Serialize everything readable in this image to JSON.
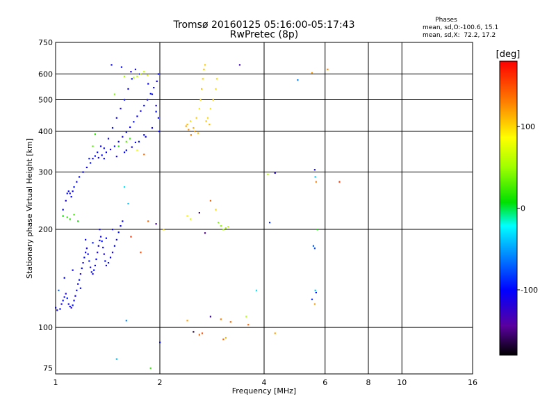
{
  "chart_data": {
    "type": "scatter",
    "title": "Tromsø 20160125 05:16:00-05:17:43",
    "subtitle": "RwPretec (8p)",
    "xlabel": "Frequency [MHz]",
    "ylabel": "Stationary phase Virtual Height [km]",
    "x_scale": "log",
    "y_scale": "log",
    "xlim": [
      1,
      16
    ],
    "ylim": [
      72,
      750
    ],
    "grid": true,
    "x_ticks": [
      1,
      2,
      4,
      6,
      8,
      10,
      16
    ],
    "x_tick_labels": [
      "1",
      "2",
      "4",
      "6",
      "8",
      "10",
      "16"
    ],
    "y_ticks": [
      75,
      100,
      200,
      300,
      400,
      500,
      600,
      750
    ],
    "y_tick_labels": [
      "75",
      "100",
      "200",
      "300",
      "400",
      "500",
      "600",
      "750"
    ],
    "stats": {
      "header": "Phases",
      "line_o": "mean, sd,O:-100.6, 15.1",
      "line_x": "mean, sd,X:  72.2, 17.2"
    },
    "colorbar": {
      "label": "[deg]",
      "range": [
        -180,
        180
      ],
      "ticks": [
        100,
        0,
        -100
      ],
      "tick_labels": [
        "100",
        "0",
        "-100"
      ]
    },
    "series": [
      {
        "points": [
          [
            1.0,
            115,
            -105
          ],
          [
            1.01,
            113,
            -110
          ],
          [
            1.03,
            114,
            -100
          ],
          [
            1.04,
            118,
            -112
          ],
          [
            1.05,
            121,
            -98
          ],
          [
            1.06,
            124,
            -105
          ],
          [
            1.07,
            127,
            -115
          ],
          [
            1.08,
            123,
            -90
          ],
          [
            1.09,
            118,
            -108
          ],
          [
            1.1,
            116,
            -102
          ],
          [
            1.11,
            115,
            -118
          ],
          [
            1.12,
            117,
            -95
          ],
          [
            1.13,
            121,
            -104
          ],
          [
            1.14,
            125,
            -110
          ],
          [
            1.15,
            130,
            -100
          ],
          [
            1.16,
            136,
            -106
          ],
          [
            1.17,
            140,
            -95
          ],
          [
            1.18,
            146,
            -112
          ],
          [
            1.19,
            152,
            -100
          ],
          [
            1.2,
            158,
            -108
          ],
          [
            1.21,
            164,
            -98
          ],
          [
            1.22,
            170,
            -104
          ],
          [
            1.23,
            175,
            -110
          ],
          [
            1.24,
            168,
            -100
          ],
          [
            1.25,
            160,
            -95
          ],
          [
            1.26,
            153,
            -108
          ],
          [
            1.27,
            148,
            -102
          ],
          [
            1.28,
            146,
            -110
          ],
          [
            1.29,
            150,
            -98
          ],
          [
            1.3,
            155,
            -104
          ],
          [
            1.31,
            162,
            -100
          ],
          [
            1.32,
            170,
            -112
          ],
          [
            1.33,
            178,
            -106
          ],
          [
            1.34,
            185,
            -100
          ],
          [
            1.35,
            190,
            -108
          ],
          [
            1.36,
            184,
            -96
          ],
          [
            1.37,
            176,
            -104
          ],
          [
            1.38,
            168,
            -110
          ],
          [
            1.39,
            160,
            -100
          ],
          [
            1.4,
            155,
            -106
          ],
          [
            1.42,
            158,
            -98
          ],
          [
            1.44,
            164,
            -104
          ],
          [
            1.46,
            170,
            -110
          ],
          [
            1.48,
            178,
            -100
          ],
          [
            1.5,
            186,
            -106
          ],
          [
            1.52,
            196,
            -98
          ],
          [
            1.54,
            205,
            -104
          ],
          [
            1.56,
            212,
            -102
          ],
          [
            1.02,
            130,
            -70
          ],
          [
            1.06,
            142,
            -100
          ],
          [
            1.12,
            150,
            -108
          ],
          [
            1.18,
            132,
            -100
          ],
          [
            1.22,
            186,
            -104
          ],
          [
            1.28,
            182,
            -95
          ],
          [
            1.34,
            200,
            -108
          ],
          [
            1.4,
            188,
            -100
          ],
          [
            1.46,
            200,
            -106
          ],
          [
            1.05,
            230,
            -100
          ],
          [
            1.07,
            245,
            -112
          ],
          [
            1.08,
            258,
            -98
          ],
          [
            1.09,
            262,
            -104
          ],
          [
            1.1,
            258,
            -108
          ],
          [
            1.11,
            252,
            -100
          ],
          [
            1.12,
            262,
            -106
          ],
          [
            1.13,
            270,
            -95
          ],
          [
            1.15,
            280,
            -104
          ],
          [
            1.17,
            290,
            -100
          ],
          [
            1.2,
            300,
            -102
          ],
          [
            1.23,
            310,
            -110
          ],
          [
            1.26,
            320,
            -98
          ],
          [
            1.28,
            330,
            -106
          ],
          [
            1.3,
            336,
            -100
          ],
          [
            1.33,
            332,
            -108
          ],
          [
            1.36,
            338,
            -100
          ],
          [
            1.4,
            345,
            -104
          ],
          [
            1.44,
            352,
            -112
          ],
          [
            1.48,
            360,
            -98
          ],
          [
            1.52,
            372,
            -104
          ],
          [
            1.56,
            385,
            -110
          ],
          [
            1.6,
            398,
            -100
          ],
          [
            1.64,
            412,
            -106
          ],
          [
            1.68,
            428,
            -98
          ],
          [
            1.72,
            445,
            -104
          ],
          [
            1.76,
            462,
            -110
          ],
          [
            1.8,
            480,
            -100
          ],
          [
            1.84,
            500,
            -106
          ],
          [
            1.88,
            522,
            -98
          ],
          [
            1.92,
            545,
            -104
          ],
          [
            1.96,
            570,
            -110
          ],
          [
            1.98,
            600,
            -100
          ],
          [
            1.38,
            355,
            -100
          ],
          [
            1.42,
            380,
            -106
          ],
          [
            1.46,
            410,
            -98
          ],
          [
            1.5,
            440,
            -104
          ],
          [
            1.54,
            470,
            -110
          ],
          [
            1.58,
            500,
            -100
          ],
          [
            1.62,
            540,
            -106
          ],
          [
            1.66,
            580,
            -98
          ],
          [
            1.7,
            620,
            -104
          ],
          [
            1.45,
            640,
            -105
          ],
          [
            1.55,
            630,
            -100
          ],
          [
            1.65,
            610,
            -110
          ],
          [
            1.75,
            600,
            -98
          ],
          [
            1.85,
            560,
            -104
          ],
          [
            1.9,
            520,
            -100
          ],
          [
            1.95,
            480,
            -108
          ],
          [
            1.98,
            440,
            -100
          ],
          [
            1.99,
            400,
            -104
          ],
          [
            1.6,
            350,
            -98
          ],
          [
            1.7,
            370,
            -104
          ],
          [
            1.8,
            390,
            -100
          ],
          [
            1.9,
            410,
            -106
          ],
          [
            1.95,
            460,
            -98
          ],
          [
            1.5,
            335,
            -110
          ],
          [
            1.58,
            345,
            -100
          ],
          [
            1.66,
            358,
            -106
          ],
          [
            1.74,
            372,
            -98
          ],
          [
            1.82,
            385,
            -104
          ],
          [
            1.25,
            330,
            -95
          ],
          [
            1.32,
            345,
            -100
          ],
          [
            1.35,
            360,
            -108
          ],
          [
            1.38,
            330,
            -100
          ],
          [
            1.05,
            220,
            10
          ],
          [
            1.08,
            218,
            20
          ],
          [
            1.1,
            215,
            15
          ],
          [
            1.13,
            222,
            25
          ],
          [
            1.16,
            212,
            10
          ],
          [
            1.28,
            360,
            30
          ],
          [
            1.3,
            392,
            20
          ],
          [
            1.52,
            360,
            15
          ],
          [
            1.6,
            372,
            30
          ],
          [
            1.64,
            380,
            20
          ],
          [
            1.72,
            590,
            60
          ],
          [
            1.76,
            600,
            70
          ],
          [
            1.8,
            610,
            65
          ],
          [
            1.84,
            595,
            75
          ],
          [
            1.68,
            585,
            55
          ],
          [
            1.48,
            520,
            40
          ],
          [
            1.58,
            590,
            50
          ],
          [
            1.58,
            270,
            -30
          ],
          [
            1.6,
            105,
            -60
          ],
          [
            1.62,
            240,
            -40
          ],
          [
            1.72,
            350,
            80
          ],
          [
            1.8,
            340,
            140
          ],
          [
            1.85,
            212,
            140
          ],
          [
            1.88,
            75,
            20
          ],
          [
            1.95,
            208,
            -140
          ],
          [
            2.0,
            90,
            -100
          ],
          [
            2.05,
            200,
            100
          ],
          [
            1.65,
            190,
            160
          ],
          [
            1.76,
            170,
            150
          ],
          [
            2.4,
            420,
            110
          ],
          [
            2.45,
            430,
            100
          ],
          [
            2.5,
            410,
            115
          ],
          [
            2.55,
            440,
            105
          ],
          [
            2.6,
            470,
            95
          ],
          [
            2.62,
            500,
            100
          ],
          [
            2.64,
            540,
            108
          ],
          [
            2.66,
            580,
            102
          ],
          [
            2.68,
            620,
            110
          ],
          [
            2.7,
            640,
            104
          ],
          [
            2.58,
            395,
            110
          ],
          [
            2.52,
            400,
            120
          ],
          [
            2.46,
            390,
            130
          ],
          [
            2.42,
            405,
            125
          ],
          [
            2.38,
            415,
            118
          ],
          [
            2.75,
            440,
            100
          ],
          [
            2.8,
            470,
            95
          ],
          [
            2.85,
            500,
            102
          ],
          [
            2.9,
            540,
            98
          ],
          [
            2.92,
            580,
            100
          ],
          [
            2.78,
            420,
            110
          ],
          [
            2.72,
            430,
            105
          ],
          [
            2.4,
            220,
            90
          ],
          [
            2.45,
            215,
            70
          ],
          [
            2.6,
            225,
            -160
          ],
          [
            2.7,
            195,
            -150
          ],
          [
            2.95,
            210,
            40
          ],
          [
            3.0,
            205,
            45
          ],
          [
            3.05,
            200,
            50
          ],
          [
            3.1,
            202,
            55
          ],
          [
            3.15,
            204,
            60
          ],
          [
            2.8,
            245,
            140
          ],
          [
            2.9,
            230,
            100
          ],
          [
            2.4,
            105,
            120
          ],
          [
            2.5,
            97,
            -170
          ],
          [
            2.6,
            95,
            140
          ],
          [
            2.65,
            96,
            150
          ],
          [
            2.8,
            108,
            -130
          ],
          [
            3.0,
            106,
            130
          ],
          [
            3.05,
            92,
            140
          ],
          [
            3.1,
            93,
            110
          ],
          [
            3.2,
            104,
            140
          ],
          [
            3.55,
            108,
            60
          ],
          [
            3.6,
            102,
            140
          ],
          [
            4.3,
            96,
            120
          ],
          [
            3.4,
            640,
            -130
          ],
          [
            3.8,
            130,
            -30
          ],
          [
            4.1,
            295,
            60
          ],
          [
            4.15,
            210,
            -90
          ],
          [
            4.3,
            298,
            -120
          ],
          [
            5.0,
            575,
            -60
          ],
          [
            5.5,
            605,
            120
          ],
          [
            5.6,
            305,
            -110
          ],
          [
            5.62,
            290,
            -40
          ],
          [
            5.65,
            280,
            130
          ],
          [
            5.7,
            200,
            10
          ],
          [
            5.55,
            178,
            -70
          ],
          [
            5.6,
            175,
            -80
          ],
          [
            5.62,
            130,
            -40
          ],
          [
            5.65,
            128,
            -100
          ],
          [
            5.5,
            122,
            -90
          ],
          [
            5.6,
            118,
            120
          ],
          [
            6.1,
            620,
            130
          ],
          [
            6.6,
            280,
            160
          ],
          [
            1.5,
            80,
            -40
          ]
        ]
      }
    ]
  }
}
